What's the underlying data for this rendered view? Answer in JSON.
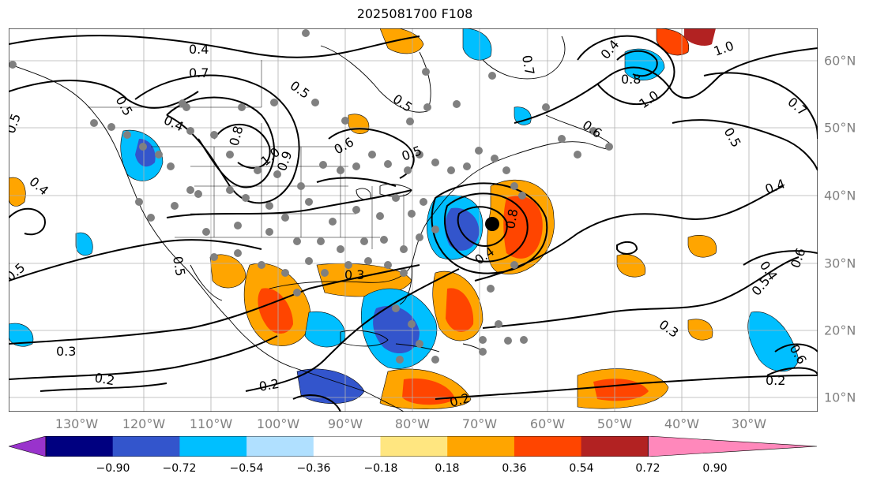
{
  "title": "2025081700 F108",
  "lon_labels": [
    "130°W",
    "120°W",
    "110°W",
    "100°W",
    "90°W",
    "80°W",
    "70°W",
    "60°W",
    "50°W",
    "40°W",
    "30°W"
  ],
  "lat_labels": [
    "60°N",
    "50°N",
    "40°N",
    "30°N",
    "20°N",
    "10°N"
  ],
  "colorbar": {
    "ticks": [
      "−0.90",
      "−0.72",
      "−0.54",
      "−0.36",
      "−0.18",
      "0.18",
      "0.36",
      "0.54",
      "0.72",
      "0.90"
    ],
    "colors": [
      "#9933cc",
      "#000080",
      "#3355cc",
      "#00bfff",
      "#b0e0ff",
      "#ffffff",
      "#ffe680",
      "#ffa500",
      "#ff4500",
      "#b22222",
      "#ff88bb"
    ]
  },
  "contour_labels": [
    "0.4",
    "0.7",
    "0.5",
    "0.5",
    "0.5",
    "0.4",
    "0.4",
    "0.5",
    "0.8",
    "1.0",
    "0.9",
    "0.6",
    "0.5",
    "0.5",
    "0.5",
    "0.3",
    "0.3",
    "0.2",
    "0.2",
    "0.2",
    "0.4",
    "0.4",
    "0.4",
    "0.5",
    "0.6",
    "0.3",
    "0.2",
    "1.0",
    "1.0",
    "0.7",
    "0.5",
    "0.6",
    "0.8",
    "0.6",
    "0.4",
    "0.8",
    "0.7"
  ]
}
